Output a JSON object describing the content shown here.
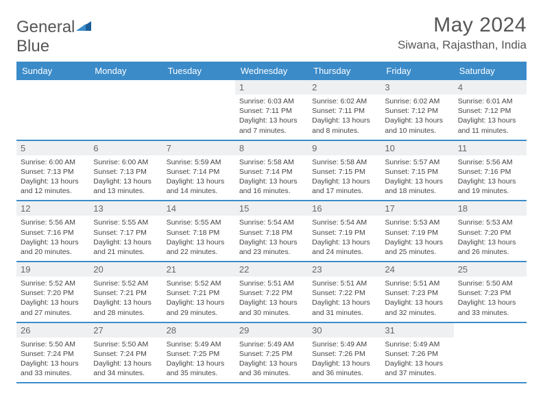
{
  "logo": {
    "text1": "General",
    "text2": "Blue"
  },
  "title": "May 2024",
  "location": "Siwana, Rajasthan, India",
  "colors": {
    "header_bg": "#3b8bc9",
    "daynum_bg": "#eef0f2",
    "row_border": "#3b8bc9",
    "logo_accent": "#1c5d99"
  },
  "weekdays": [
    "Sunday",
    "Monday",
    "Tuesday",
    "Wednesday",
    "Thursday",
    "Friday",
    "Saturday"
  ],
  "weeks": [
    [
      null,
      null,
      null,
      {
        "n": "1",
        "sr": "6:03 AM",
        "ss": "7:11 PM",
        "dl": "13 hours and 7 minutes."
      },
      {
        "n": "2",
        "sr": "6:02 AM",
        "ss": "7:11 PM",
        "dl": "13 hours and 8 minutes."
      },
      {
        "n": "3",
        "sr": "6:02 AM",
        "ss": "7:12 PM",
        "dl": "13 hours and 10 minutes."
      },
      {
        "n": "4",
        "sr": "6:01 AM",
        "ss": "7:12 PM",
        "dl": "13 hours and 11 minutes."
      }
    ],
    [
      {
        "n": "5",
        "sr": "6:00 AM",
        "ss": "7:13 PM",
        "dl": "13 hours and 12 minutes."
      },
      {
        "n": "6",
        "sr": "6:00 AM",
        "ss": "7:13 PM",
        "dl": "13 hours and 13 minutes."
      },
      {
        "n": "7",
        "sr": "5:59 AM",
        "ss": "7:14 PM",
        "dl": "13 hours and 14 minutes."
      },
      {
        "n": "8",
        "sr": "5:58 AM",
        "ss": "7:14 PM",
        "dl": "13 hours and 16 minutes."
      },
      {
        "n": "9",
        "sr": "5:58 AM",
        "ss": "7:15 PM",
        "dl": "13 hours and 17 minutes."
      },
      {
        "n": "10",
        "sr": "5:57 AM",
        "ss": "7:15 PM",
        "dl": "13 hours and 18 minutes."
      },
      {
        "n": "11",
        "sr": "5:56 AM",
        "ss": "7:16 PM",
        "dl": "13 hours and 19 minutes."
      }
    ],
    [
      {
        "n": "12",
        "sr": "5:56 AM",
        "ss": "7:16 PM",
        "dl": "13 hours and 20 minutes."
      },
      {
        "n": "13",
        "sr": "5:55 AM",
        "ss": "7:17 PM",
        "dl": "13 hours and 21 minutes."
      },
      {
        "n": "14",
        "sr": "5:55 AM",
        "ss": "7:18 PM",
        "dl": "13 hours and 22 minutes."
      },
      {
        "n": "15",
        "sr": "5:54 AM",
        "ss": "7:18 PM",
        "dl": "13 hours and 23 minutes."
      },
      {
        "n": "16",
        "sr": "5:54 AM",
        "ss": "7:19 PM",
        "dl": "13 hours and 24 minutes."
      },
      {
        "n": "17",
        "sr": "5:53 AM",
        "ss": "7:19 PM",
        "dl": "13 hours and 25 minutes."
      },
      {
        "n": "18",
        "sr": "5:53 AM",
        "ss": "7:20 PM",
        "dl": "13 hours and 26 minutes."
      }
    ],
    [
      {
        "n": "19",
        "sr": "5:52 AM",
        "ss": "7:20 PM",
        "dl": "13 hours and 27 minutes."
      },
      {
        "n": "20",
        "sr": "5:52 AM",
        "ss": "7:21 PM",
        "dl": "13 hours and 28 minutes."
      },
      {
        "n": "21",
        "sr": "5:52 AM",
        "ss": "7:21 PM",
        "dl": "13 hours and 29 minutes."
      },
      {
        "n": "22",
        "sr": "5:51 AM",
        "ss": "7:22 PM",
        "dl": "13 hours and 30 minutes."
      },
      {
        "n": "23",
        "sr": "5:51 AM",
        "ss": "7:22 PM",
        "dl": "13 hours and 31 minutes."
      },
      {
        "n": "24",
        "sr": "5:51 AM",
        "ss": "7:23 PM",
        "dl": "13 hours and 32 minutes."
      },
      {
        "n": "25",
        "sr": "5:50 AM",
        "ss": "7:23 PM",
        "dl": "13 hours and 33 minutes."
      }
    ],
    [
      {
        "n": "26",
        "sr": "5:50 AM",
        "ss": "7:24 PM",
        "dl": "13 hours and 33 minutes."
      },
      {
        "n": "27",
        "sr": "5:50 AM",
        "ss": "7:24 PM",
        "dl": "13 hours and 34 minutes."
      },
      {
        "n": "28",
        "sr": "5:49 AM",
        "ss": "7:25 PM",
        "dl": "13 hours and 35 minutes."
      },
      {
        "n": "29",
        "sr": "5:49 AM",
        "ss": "7:25 PM",
        "dl": "13 hours and 36 minutes."
      },
      {
        "n": "30",
        "sr": "5:49 AM",
        "ss": "7:26 PM",
        "dl": "13 hours and 36 minutes."
      },
      {
        "n": "31",
        "sr": "5:49 AM",
        "ss": "7:26 PM",
        "dl": "13 hours and 37 minutes."
      },
      null
    ]
  ]
}
